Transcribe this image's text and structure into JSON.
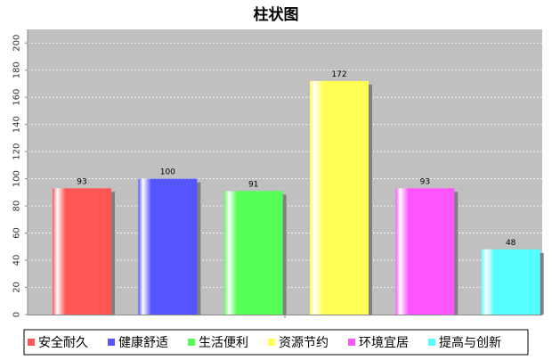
{
  "chart_data": {
    "type": "bar",
    "title": "柱状图",
    "xlabel": "",
    "ylabel": "",
    "categories": [
      "安全耐久",
      "健康舒适",
      "生活便利",
      "资源节约",
      "环境宜居",
      "提高与创新"
    ],
    "values": [
      93,
      100,
      91,
      172,
      93,
      48
    ],
    "data_labels": [
      "93",
      "100",
      "91",
      "172",
      "93",
      "48"
    ],
    "colors": [
      "#ff5555",
      "#5555ff",
      "#55ff55",
      "#ffff55",
      "#ff55ff",
      "#55ffff"
    ],
    "ylim": [
      0,
      210
    ],
    "yticks": [
      0,
      20,
      40,
      60,
      80,
      100,
      120,
      140,
      160,
      180,
      200
    ],
    "ytick_labels": [
      "0",
      "20",
      "40",
      "60",
      "80",
      "100",
      "120",
      "140",
      "160",
      "180",
      "200"
    ],
    "grid": true,
    "plot_background": "#c0c0c0",
    "legend_position": "bottom"
  }
}
